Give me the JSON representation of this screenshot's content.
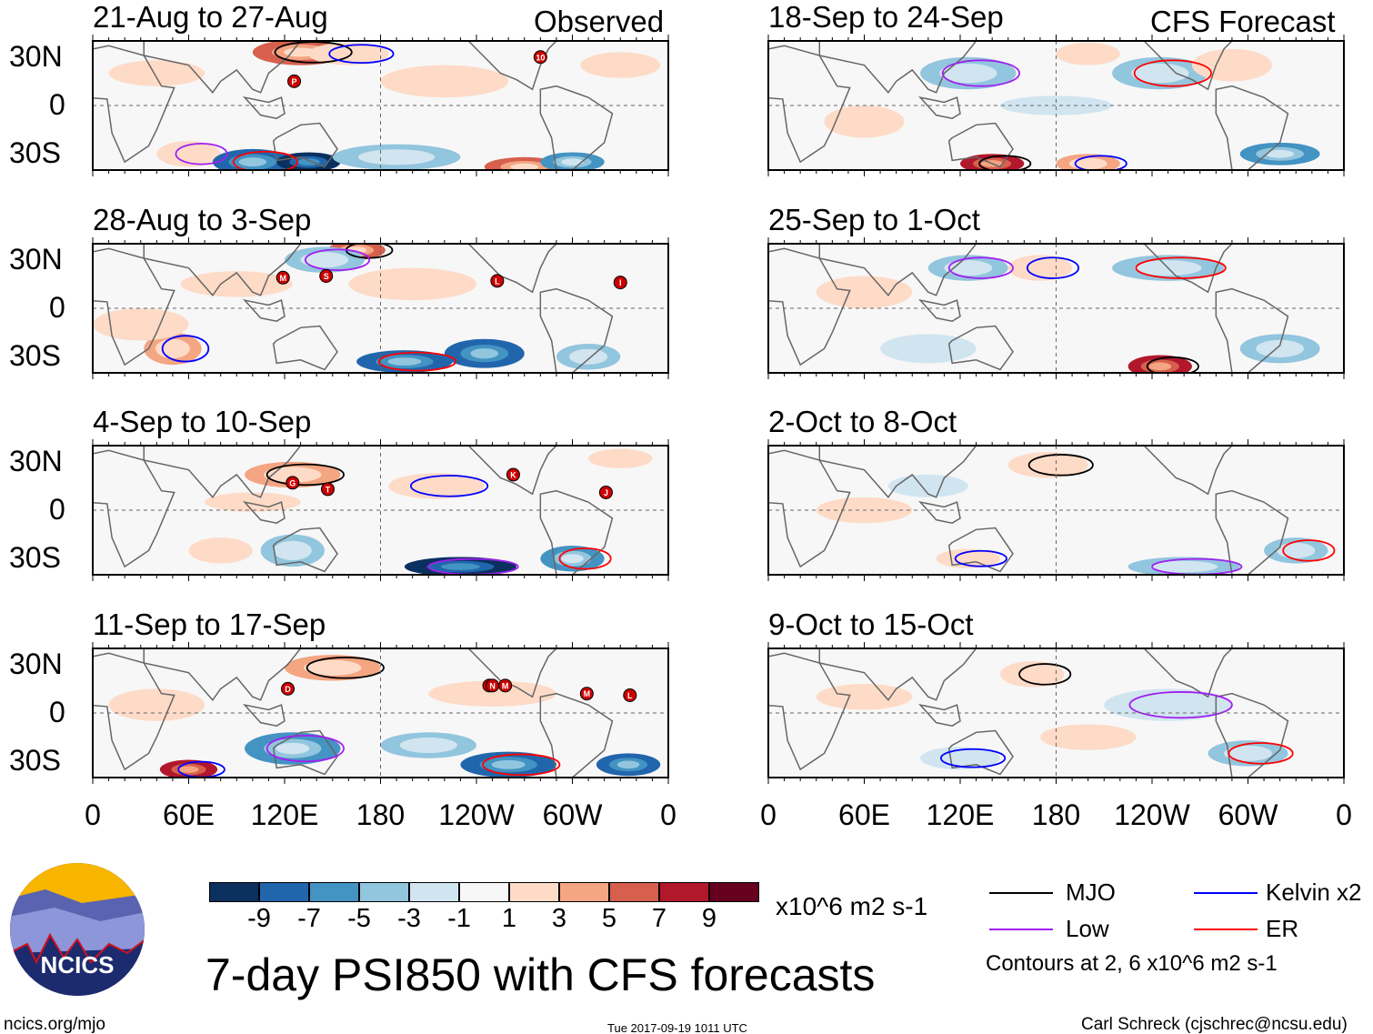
{
  "header": {
    "left_label": "Observed",
    "right_label": "CFS Forecast"
  },
  "chart_data": {
    "type": "heatmap",
    "title": "7-day PSI850 with CFS forecasts",
    "units": "x10^6 m2 s-1",
    "lon_ticks": [
      "0",
      "60E",
      "120E",
      "180",
      "120W",
      "60W",
      "0"
    ],
    "lat_ticks": [
      "30N",
      "0",
      "30S"
    ],
    "colorbar": {
      "ticks": [
        "-9",
        "-7",
        "-5",
        "-3",
        "-1",
        "1",
        "3",
        "5",
        "7",
        "9"
      ],
      "colors": [
        "#0b3060",
        "#2166ac",
        "#4393c3",
        "#92c5de",
        "#d1e5f0",
        "#f7f7f7",
        "#fddbc7",
        "#f4a582",
        "#d6604d",
        "#b2182b",
        "#67001f"
      ]
    },
    "panels": [
      {
        "title": "21-Aug to 27-Aug",
        "column": "observed",
        "storms": [
          {
            "id": "P",
            "lon": 126,
            "lat": 15
          },
          {
            "id": "10",
            "lon": 280,
            "lat": 30
          }
        ],
        "features": [
          [
            130,
            33,
            30,
            8,
            6
          ],
          [
            160,
            32,
            25,
            7,
            3
          ],
          [
            60,
            -30,
            20,
            8,
            3
          ],
          [
            100,
            -35,
            25,
            8,
            -7
          ],
          [
            135,
            -35,
            20,
            6,
            -9
          ],
          [
            190,
            -32,
            40,
            8,
            -3
          ],
          [
            270,
            -38,
            25,
            6,
            7
          ],
          [
            300,
            -35,
            20,
            6,
            -5
          ],
          [
            40,
            20,
            30,
            8,
            1
          ],
          [
            220,
            15,
            40,
            10,
            1
          ],
          [
            330,
            25,
            25,
            8,
            3
          ]
        ]
      },
      {
        "title": "28-Aug to 3-Sep",
        "column": "observed",
        "storms": [
          {
            "id": "M",
            "lon": 119,
            "lat": 19
          },
          {
            "id": "S",
            "lon": 146,
            "lat": 20
          },
          {
            "id": "L",
            "lon": 253,
            "lat": 17
          },
          {
            "id": "I",
            "lon": 330,
            "lat": 16
          }
        ],
        "features": [
          [
            165,
            36,
            18,
            6,
            7
          ],
          [
            50,
            -25,
            18,
            10,
            5
          ],
          [
            145,
            30,
            25,
            8,
            -3
          ],
          [
            195,
            -33,
            30,
            7,
            -7
          ],
          [
            245,
            -28,
            25,
            9,
            -7
          ],
          [
            310,
            -30,
            20,
            8,
            -3
          ],
          [
            200,
            15,
            40,
            10,
            3
          ],
          [
            90,
            15,
            35,
            8,
            1
          ],
          [
            30,
            -10,
            30,
            10,
            1
          ]
        ]
      },
      {
        "title": "4-Sep to 10-Sep",
        "column": "observed",
        "storms": [
          {
            "id": "G",
            "lon": 125,
            "lat": 17
          },
          {
            "id": "T",
            "lon": 147,
            "lat": 13
          },
          {
            "id": "K",
            "lon": 263,
            "lat": 22
          },
          {
            "id": "J",
            "lon": 321,
            "lat": 11
          }
        ],
        "features": [
          [
            125,
            22,
            30,
            8,
            5
          ],
          [
            215,
            15,
            30,
            8,
            3
          ],
          [
            230,
            -35,
            35,
            6,
            -9
          ],
          [
            300,
            -30,
            20,
            8,
            -5
          ],
          [
            125,
            -25,
            20,
            10,
            -3
          ],
          [
            80,
            -25,
            20,
            8,
            3
          ],
          [
            330,
            32,
            20,
            6,
            3
          ],
          [
            100,
            5,
            30,
            6,
            1
          ]
        ]
      },
      {
        "title": "11-Sep to 17-Sep",
        "column": "observed",
        "storms": [
          {
            "id": "D",
            "lon": 122,
            "lat": 15
          },
          {
            "id": "O",
            "lon": 248,
            "lat": 17
          },
          {
            "id": "N",
            "lon": 250,
            "lat": 17
          },
          {
            "id": "M",
            "lon": 258,
            "lat": 17
          },
          {
            "id": "M",
            "lon": 309,
            "lat": 12
          },
          {
            "id": "L",
            "lon": 336,
            "lat": 11
          }
        ],
        "features": [
          [
            150,
            28,
            30,
            8,
            5
          ],
          [
            60,
            -35,
            18,
            6,
            9
          ],
          [
            125,
            -22,
            30,
            10,
            -5
          ],
          [
            260,
            -32,
            30,
            8,
            -7
          ],
          [
            335,
            -32,
            20,
            7,
            -7
          ],
          [
            210,
            -20,
            30,
            8,
            -3
          ],
          [
            250,
            12,
            40,
            8,
            1
          ],
          [
            40,
            5,
            30,
            10,
            1
          ]
        ]
      },
      {
        "title": "18-Sep to 24-Sep",
        "column": "forecast",
        "storms": [],
        "features": [
          [
            140,
            -36,
            20,
            6,
            9
          ],
          [
            200,
            -36,
            20,
            6,
            5
          ],
          [
            125,
            20,
            30,
            10,
            -3
          ],
          [
            245,
            20,
            30,
            10,
            -3
          ],
          [
            320,
            -30,
            25,
            7,
            -5
          ],
          [
            200,
            32,
            20,
            7,
            3
          ],
          [
            290,
            25,
            25,
            10,
            3
          ],
          [
            60,
            -10,
            25,
            10,
            1
          ],
          [
            180,
            0,
            35,
            6,
            -1
          ]
        ]
      },
      {
        "title": "25-Sep to 1-Oct",
        "column": "forecast",
        "storms": [],
        "features": [
          [
            245,
            -36,
            20,
            7,
            9
          ],
          [
            170,
            25,
            20,
            8,
            3
          ],
          [
            125,
            25,
            25,
            8,
            -3
          ],
          [
            250,
            25,
            35,
            8,
            -3
          ],
          [
            320,
            -25,
            25,
            9,
            -3
          ],
          [
            100,
            -25,
            30,
            9,
            -1
          ],
          [
            60,
            10,
            30,
            10,
            1
          ]
        ]
      },
      {
        "title": "2-Oct to 8-Oct",
        "column": "forecast",
        "storms": [],
        "features": [
          [
            175,
            28,
            25,
            8,
            3
          ],
          [
            125,
            -30,
            20,
            6,
            3
          ],
          [
            260,
            -35,
            35,
            6,
            -3
          ],
          [
            330,
            -25,
            20,
            8,
            -3
          ],
          [
            100,
            15,
            25,
            7,
            -1
          ],
          [
            60,
            0,
            30,
            8,
            1
          ]
        ]
      },
      {
        "title": "9-Oct to 15-Oct",
        "column": "forecast",
        "storms": [],
        "features": [
          [
            165,
            24,
            20,
            8,
            3
          ],
          [
            120,
            -28,
            25,
            7,
            -1
          ],
          [
            250,
            5,
            40,
            10,
            -1
          ],
          [
            300,
            -25,
            25,
            8,
            -3
          ],
          [
            60,
            10,
            30,
            8,
            1
          ],
          [
            200,
            -15,
            30,
            8,
            1
          ]
        ]
      }
    ]
  },
  "legend": {
    "items": [
      {
        "label": "MJO",
        "color": "#000000"
      },
      {
        "label": "Kelvin x2",
        "color": "#0000ff"
      },
      {
        "label": "Low",
        "color": "#a020f0"
      },
      {
        "label": "ER",
        "color": "#ff0000"
      }
    ],
    "contours_note": "Contours at 2, 6 x10^6 m2 s-1"
  },
  "logo": {
    "text": "NCICS"
  },
  "footer": {
    "url": "ncics.org/mjo",
    "timestamp": "Tue 2017-09-19 1011 UTC",
    "credit": "Carl Schreck (cjschrec@ncsu.edu)"
  }
}
